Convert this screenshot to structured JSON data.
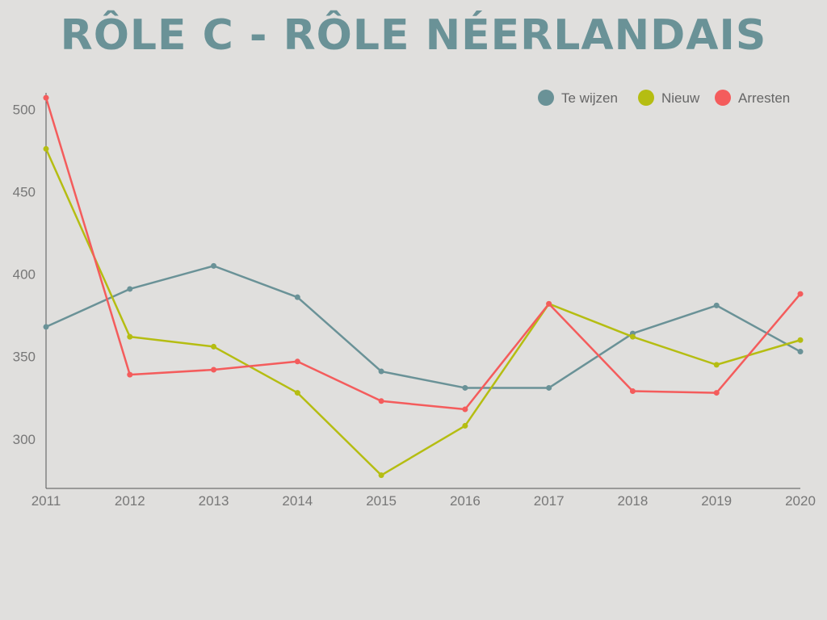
{
  "title": "RÔLE C - RÔLE NÉERLANDAIS",
  "chart_data": {
    "type": "line",
    "title": "RÔLE C - RÔLE NÉERLANDAIS",
    "xlabel": "",
    "ylabel": "",
    "x": [
      "2011",
      "2012",
      "2013",
      "2014",
      "2015",
      "2016",
      "2017",
      "2018",
      "2019",
      "2020"
    ],
    "y_ticks": [
      300,
      350,
      400,
      450,
      500
    ],
    "ylim": [
      270,
      510
    ],
    "grid": false,
    "legend_position": "top-right",
    "series": [
      {
        "name": "Te wijzen",
        "color": "#6a9297",
        "values": [
          368,
          391,
          405,
          386,
          341,
          331,
          331,
          364,
          381,
          353
        ]
      },
      {
        "name": "Nieuw",
        "color": "#b5bd12",
        "values": [
          476,
          362,
          356,
          328,
          278,
          308,
          382,
          362,
          345,
          360
        ]
      },
      {
        "name": "Arresten",
        "color": "#f45c5c",
        "values": [
          507,
          339,
          342,
          347,
          323,
          318,
          382,
          329,
          328,
          388
        ]
      }
    ]
  }
}
